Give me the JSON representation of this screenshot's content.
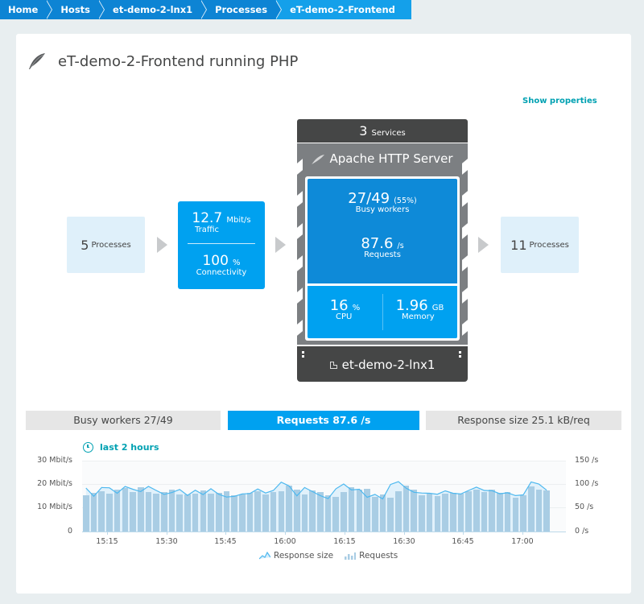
{
  "breadcrumb": [
    {
      "label": "Home"
    },
    {
      "label": "Hosts"
    },
    {
      "label": "et-demo-2-lnx1"
    },
    {
      "label": "Processes"
    },
    {
      "label": "eT-demo-2-Frontend"
    }
  ],
  "header": {
    "title": "eT-demo-2-Frontend running PHP",
    "icon": "apache-feather-icon",
    "show_properties": "Show properties"
  },
  "flow": {
    "incoming": {
      "count": "5",
      "label": "Processes"
    },
    "traffic": {
      "value": "12.7",
      "unit": "Mbit/s",
      "label": "Traffic",
      "connectivity_value": "100",
      "connectivity_unit": "%",
      "connectivity_label": "Connectivity"
    },
    "services": {
      "count": "3",
      "label": "Services"
    },
    "service": {
      "name": "Apache HTTP Server",
      "icon": "apache-feather-icon",
      "busy_workers": "27/49",
      "busy_workers_pct": "(55%)",
      "busy_workers_label": "Busy workers",
      "requests": "87.6",
      "requests_unit": "/s",
      "requests_label": "Requests",
      "cpu": "16",
      "cpu_unit": "%",
      "cpu_label": "CPU",
      "memory": "1.96",
      "memory_unit": "GB",
      "memory_label": "Memory"
    },
    "host": {
      "name": "et-demo-2-lnx1",
      "icon": "external-link-icon"
    },
    "outgoing": {
      "count": "11",
      "label": "Processes"
    }
  },
  "tabs": [
    {
      "label": "Busy workers 27/49",
      "active": false
    },
    {
      "label": "Requests 87.6 /s",
      "active": true
    },
    {
      "label": "Response size 25.1 kB/req",
      "active": false
    }
  ],
  "timeframe": {
    "label": "last 2 hours",
    "icon": "clock-icon"
  },
  "colors": {
    "accent": "#00a1f0",
    "breadcrumb": "#0d84d4",
    "dark": "#454646",
    "link": "#00a1b2",
    "bar": "#a9cde4",
    "line": "#4db8ef"
  },
  "chart_data": {
    "type": "bar+line",
    "title": "",
    "x_ticks": [
      "15:15",
      "15:30",
      "15:45",
      "16:00",
      "16:15",
      "16:30",
      "16:45",
      "17:00"
    ],
    "y_left": {
      "label": "Response size",
      "ticks": [
        "0",
        "10 Mbit/s",
        "20 Mbit/s",
        "30 Mbit/s"
      ],
      "range": [
        0,
        30
      ]
    },
    "y_right": {
      "label": "Requests",
      "ticks": [
        "0 /s",
        "50 /s",
        "100 /s",
        "150 /s"
      ],
      "range": [
        0,
        150
      ]
    },
    "grid": true,
    "legend": [
      "Response size",
      "Requests"
    ],
    "legend_position": "bottom",
    "series": [
      {
        "name": "Requests",
        "type": "bar",
        "unit": "/s",
        "values": [
          77,
          82,
          85,
          80,
          88,
          92,
          83,
          94,
          84,
          80,
          83,
          88,
          78,
          79,
          80,
          87,
          80,
          82,
          86,
          77,
          78,
          82,
          85,
          78,
          84,
          86,
          97,
          88,
          78,
          87,
          84,
          77,
          74,
          84,
          94,
          88,
          90,
          74,
          79,
          72,
          86,
          97,
          88,
          77,
          80,
          75,
          80,
          82,
          81,
          86,
          88,
          84,
          88,
          82,
          83,
          72,
          77,
          95,
          89,
          87
        ],
        "note": "values estimated from pixel heights, right axis"
      },
      {
        "name": "Response size",
        "type": "line",
        "unit": "Mbit/s",
        "values": [
          18.4,
          14.9,
          18.6,
          18.5,
          16.2,
          19.1,
          17.9,
          16.9,
          19.1,
          17.4,
          15.7,
          16.5,
          17.8,
          15.3,
          17.5,
          15.6,
          18.1,
          15.8,
          14.6,
          14.9,
          15.9,
          16.1,
          18.0,
          16.3,
          17.4,
          20.9,
          19.3,
          15.1,
          18.6,
          16.9,
          15.2,
          13.9,
          18.1,
          20.1,
          17.6,
          17.9,
          14.5,
          15.7,
          13.8,
          19.9,
          21.1,
          18.3,
          16.6,
          16.3,
          16.2,
          15.8,
          17.2,
          16.2,
          15.9,
          17.4,
          18.8,
          17.4,
          17.3,
          16.0,
          16.4,
          15.2,
          15.5,
          21.0,
          20.1,
          17.5
        ],
        "note": "values estimated, left axis"
      }
    ]
  }
}
